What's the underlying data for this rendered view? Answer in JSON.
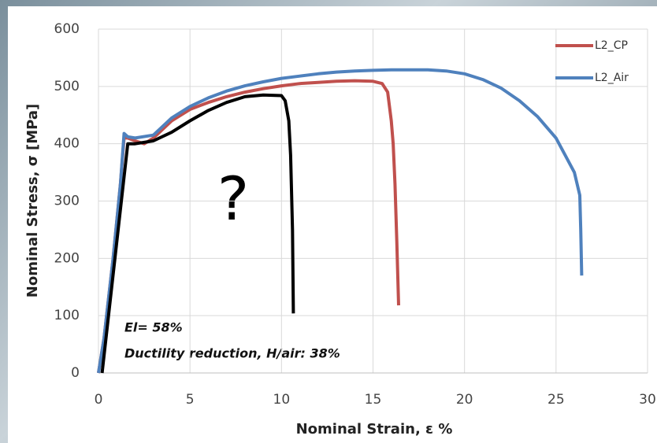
{
  "chart_data": {
    "type": "line",
    "xlabel": "Nominal Strain, ε %",
    "ylabel": "Nominal Stress, σ [MPa]",
    "xlim": [
      0,
      30
    ],
    "xticks": [
      0,
      5,
      10,
      15,
      20,
      25,
      30
    ],
    "ylim": [
      0,
      600
    ],
    "yticks": [
      0,
      100,
      200,
      300,
      400,
      500,
      600
    ],
    "grid": true,
    "legend": "upper right",
    "annotations": [
      "?",
      "El= 58%",
      "Ductility reduction, H/air: 38%"
    ],
    "series": [
      {
        "name": "L2_CP",
        "color": "#c0504d",
        "x": [
          0,
          0.3,
          0.8,
          1.2,
          1.4,
          1.6,
          2,
          2.5,
          3,
          4,
          5,
          6,
          7,
          8,
          9,
          10,
          11,
          12,
          13,
          14,
          15,
          15.5,
          15.8,
          16,
          16.1,
          16.2,
          16.3,
          16.4
        ],
        "values": [
          0,
          60,
          200,
          330,
          410,
          410,
          405,
          400,
          410,
          440,
          460,
          472,
          482,
          490,
          496,
          501,
          505,
          507,
          509,
          510,
          509,
          505,
          490,
          440,
          400,
          330,
          230,
          118
        ]
      },
      {
        "name": "L2_Air",
        "color": "#4f81bd",
        "x": [
          0,
          0.3,
          0.8,
          1.2,
          1.4,
          1.6,
          2,
          3,
          4,
          5,
          6,
          7,
          8,
          9,
          10,
          11,
          12,
          13,
          14,
          15,
          16,
          17,
          18,
          19,
          20,
          21,
          22,
          23,
          24,
          25,
          26,
          26.3,
          26.35,
          26.4
        ],
        "values": [
          0,
          60,
          200,
          330,
          418,
          412,
          410,
          415,
          445,
          465,
          480,
          492,
          501,
          508,
          514,
          518,
          522,
          525,
          527,
          528,
          529,
          529,
          529,
          527,
          522,
          512,
          497,
          475,
          447,
          410,
          350,
          310,
          250,
          170
        ]
      },
      {
        "color": "#000000",
        "x": [
          0.2,
          1.6,
          2,
          3,
          4,
          5,
          6,
          7,
          8,
          9,
          10,
          10.2,
          10.4,
          10.5,
          10.6,
          10.65
        ],
        "values": [
          0,
          400,
          400,
          405,
          420,
          440,
          458,
          472,
          482,
          485,
          484,
          475,
          440,
          380,
          250,
          104
        ]
      }
    ]
  }
}
